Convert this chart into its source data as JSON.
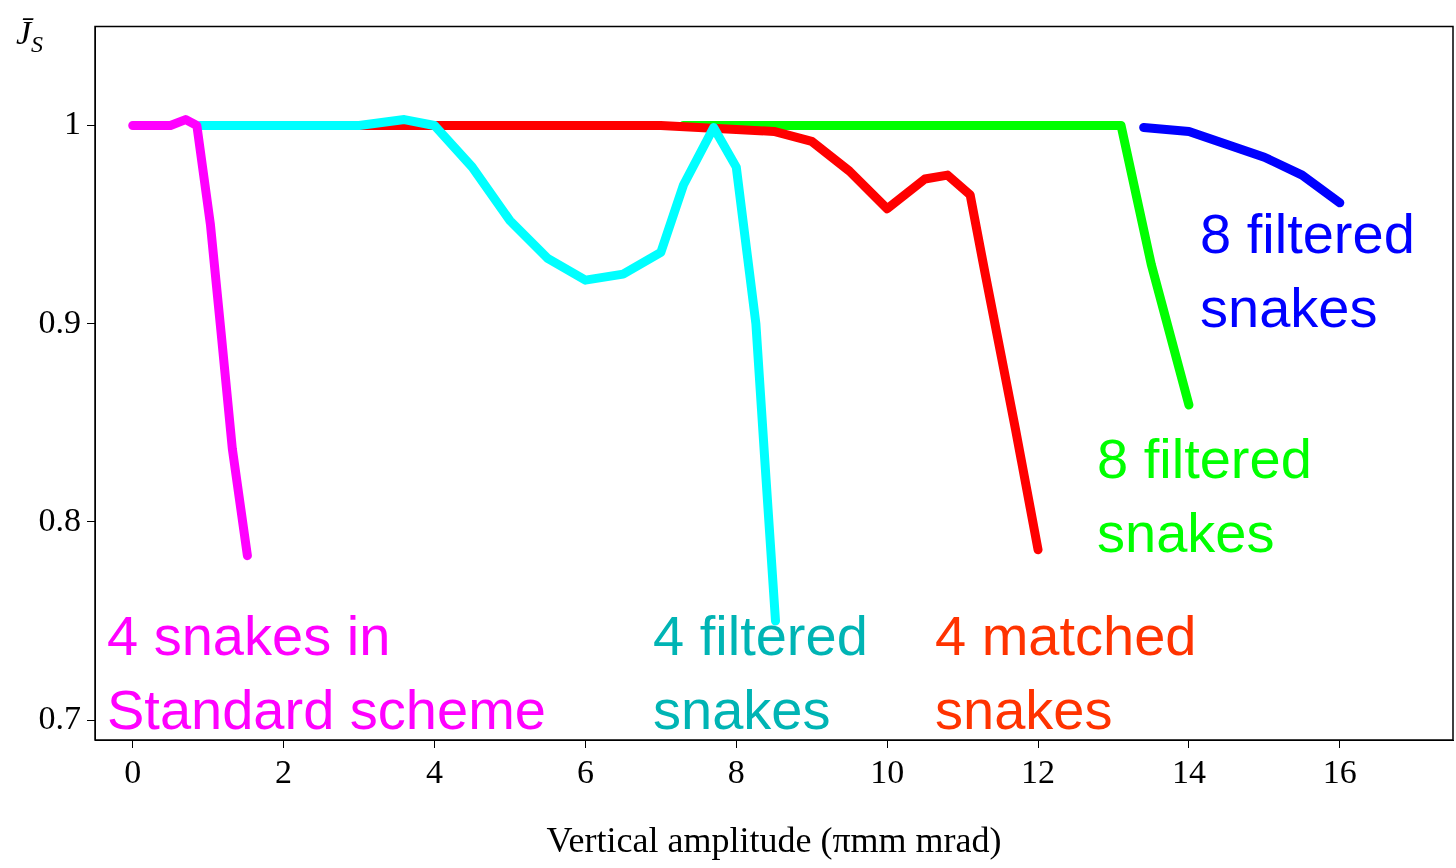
{
  "chart_data": {
    "type": "line",
    "xlabel": "Vertical amplitude (πmm mrad)",
    "ylabel": "J̄$_{S}$",
    "xlim": [
      -0.5,
      17.5
    ],
    "xticks": [
      0,
      2,
      4,
      6,
      8,
      10,
      12,
      14,
      16
    ],
    "ylim": [
      0.69,
      1.05
    ],
    "yticks": [
      0.7,
      0.8,
      0.9,
      1
    ],
    "grid": false,
    "legend": false,
    "marker": "none",
    "line_style": "solid",
    "series": [
      {
        "name": "4 snakes in Standard scheme",
        "color": "#ff00ff",
        "x": [
          0,
          0.5,
          0.7,
          0.85,
          1.03,
          1.17,
          1.32,
          1.52
        ],
        "values": [
          1,
          1,
          1.003,
          1,
          0.95,
          0.896,
          0.837,
          0.783
        ]
      },
      {
        "name": "4 filtered snakes",
        "color": "#00ffff",
        "x": [
          0.9,
          3,
          3.6,
          4,
          4.5,
          5,
          5.5,
          6,
          6.5,
          7,
          7.3,
          7.7,
          8,
          8.26,
          8.38,
          8.52
        ],
        "values": [
          1,
          1,
          1.003,
          1,
          0.979,
          0.952,
          0.933,
          0.922,
          0.925,
          0.936,
          0.97,
          0.999,
          0.979,
          0.9,
          0.83,
          0.75
        ]
      },
      {
        "name": "4 matched snakes",
        "color": "#ff0000",
        "x": [
          3,
          7,
          7.5,
          8,
          8.5,
          9,
          9.5,
          10,
          10.5,
          10.8,
          11.1,
          11.3,
          11.5,
          11.7,
          12
        ],
        "values": [
          1,
          1,
          0.999,
          0.998,
          0.997,
          0.992,
          0.977,
          0.958,
          0.973,
          0.975,
          0.965,
          0.925,
          0.886,
          0.847,
          0.786
        ]
      },
      {
        "name": "8 filtered snakes",
        "color": "#00ff00",
        "x": [
          7.3,
          13,
          13.1,
          13.5,
          14
        ],
        "values": [
          1,
          1,
          1,
          0.93,
          0.859
        ]
      },
      {
        "name": "8 filtered snakes",
        "color": "#0000ff",
        "x": [
          13.4,
          14,
          15,
          15.5,
          16
        ],
        "values": [
          0.999,
          0.997,
          0.984,
          0.975,
          0.961
        ]
      }
    ]
  }
}
